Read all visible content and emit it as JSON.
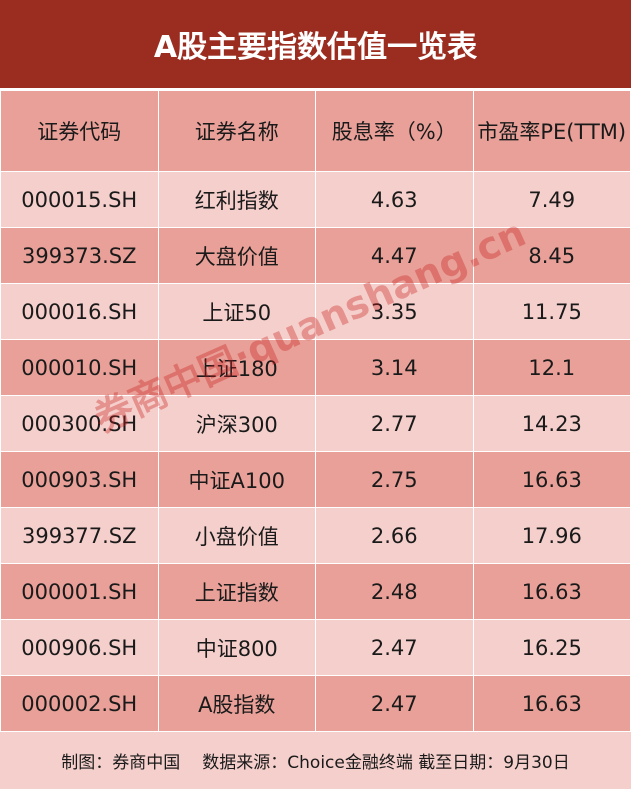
{
  "title": "A股主要指数估值一览表",
  "columns": [
    "证券代码",
    "证券名称",
    "股息率（%）",
    "市盈率PE(TTM)"
  ],
  "rows": [
    [
      "000015.SH",
      "红利指数",
      "4.63",
      "7.49"
    ],
    [
      "399373.SZ",
      "大盘价值",
      "4.47",
      "8.45"
    ],
    [
      "000016.SH",
      "上证50",
      "3.35",
      "11.75"
    ],
    [
      "000010.SH",
      "上证180",
      "3.14",
      "12.1"
    ],
    [
      "000300.SH",
      "沪深300",
      "2.77",
      "14.23"
    ],
    [
      "000903.SH",
      "中证A100",
      "2.75",
      "16.63"
    ],
    [
      "399377.SZ",
      "小盘价值",
      "2.66",
      "17.96"
    ],
    [
      "000001.SH",
      "上证指数",
      "2.48",
      "16.63"
    ],
    [
      "000906.SH",
      "中证800",
      "2.47",
      "16.25"
    ],
    [
      "000002.SH",
      "A股指数",
      "2.47",
      "16.63"
    ]
  ],
  "footer": {
    "credit": "制图：券商中国",
    "source": "数据来源：Choice金融终端 截至日期：9月30日"
  },
  "watermark": "券商中国·quanshang.cn",
  "colors": {
    "title_bg": "#9b2c20",
    "row_dark": "#e8a098",
    "row_light": "#f4cfcb"
  }
}
